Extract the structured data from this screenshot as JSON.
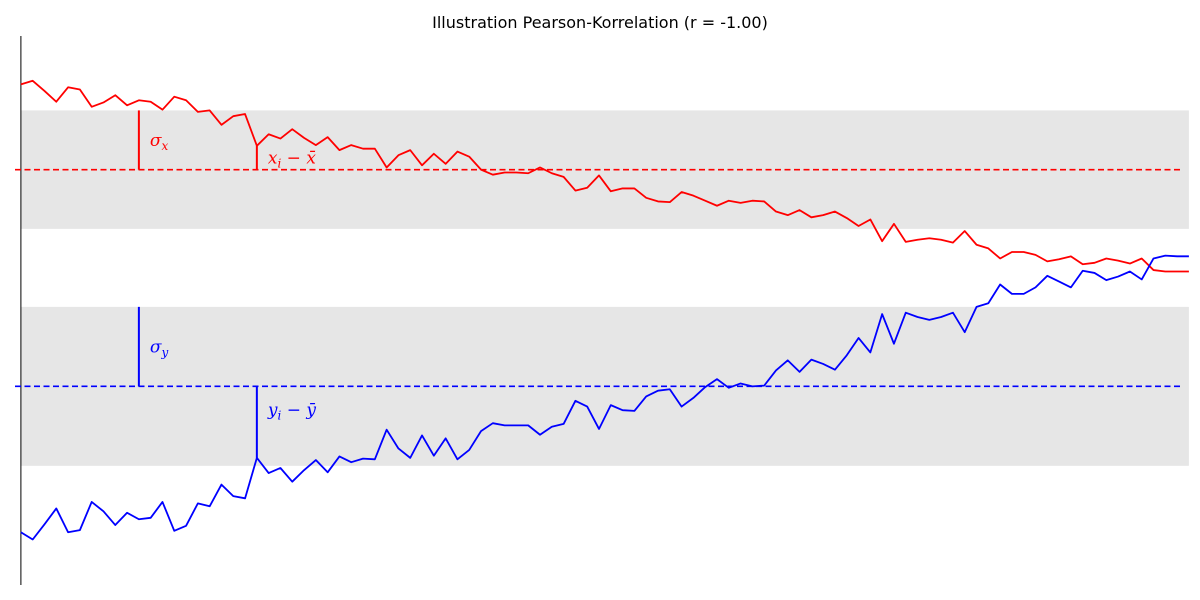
{
  "chart_data": {
    "type": "line",
    "title": "Illustration Pearson-Korrelation (r = -1.00)",
    "xlabel": "",
    "ylabel": "",
    "grid": false,
    "n_points": 100,
    "xlim": [
      -0.5,
      98.5
    ],
    "ylim": [
      -0.8,
      6.8
    ],
    "colors": {
      "x_series": "#ff0000",
      "y_series": "#0000ff",
      "band": "#e6e6e6",
      "axis": "#000000"
    },
    "series": [
      {
        "key": "x",
        "values": [
          6.13,
          6.18,
          6.04,
          5.89,
          6.09,
          6.06,
          5.82,
          5.88,
          5.98,
          5.84,
          5.91,
          5.89,
          5.78,
          5.96,
          5.91,
          5.75,
          5.77,
          5.57,
          5.69,
          5.72,
          5.28,
          5.44,
          5.38,
          5.51,
          5.39,
          5.29,
          5.4,
          5.22,
          5.29,
          5.24,
          5.24,
          4.98,
          5.15,
          5.22,
          5.01,
          5.17,
          5.03,
          5.2,
          5.13,
          4.95,
          4.88,
          4.91,
          4.91,
          4.9,
          4.98,
          4.9,
          4.85,
          4.66,
          4.7,
          4.87,
          4.65,
          4.69,
          4.69,
          4.56,
          4.51,
          4.5,
          4.64,
          4.59,
          4.52,
          4.45,
          4.52,
          4.49,
          4.52,
          4.51,
          4.37,
          4.32,
          4.39,
          4.29,
          4.32,
          4.37,
          4.28,
          4.17,
          4.26,
          3.96,
          4.2,
          3.95,
          3.98,
          4.0,
          3.98,
          3.94,
          4.1,
          3.91,
          3.86,
          3.72,
          3.81,
          3.81,
          3.77,
          3.68,
          3.71,
          3.75,
          3.64,
          3.66,
          3.72,
          3.69,
          3.65,
          3.72,
          3.56,
          3.54,
          3.54,
          3.54
        ]
      },
      {
        "key": "y",
        "values": [
          -0.07,
          -0.17,
          0.04,
          0.26,
          -0.07,
          -0.04,
          0.35,
          0.22,
          0.03,
          0.2,
          0.11,
          0.13,
          0.35,
          -0.05,
          0.02,
          0.33,
          0.29,
          0.59,
          0.43,
          0.4,
          0.96,
          0.75,
          0.82,
          0.63,
          0.79,
          0.93,
          0.76,
          0.98,
          0.9,
          0.95,
          0.94,
          1.35,
          1.09,
          0.96,
          1.27,
          0.99,
          1.23,
          0.94,
          1.07,
          1.33,
          1.44,
          1.41,
          1.41,
          1.41,
          1.28,
          1.39,
          1.43,
          1.75,
          1.67,
          1.36,
          1.69,
          1.62,
          1.61,
          1.81,
          1.89,
          1.91,
          1.67,
          1.79,
          1.94,
          2.05,
          1.93,
          1.99,
          1.95,
          1.96,
          2.17,
          2.31,
          2.15,
          2.32,
          2.26,
          2.18,
          2.38,
          2.62,
          2.42,
          2.95,
          2.54,
          2.97,
          2.91,
          2.87,
          2.91,
          2.97,
          2.7,
          3.05,
          3.1,
          3.36,
          3.23,
          3.23,
          3.32,
          3.48,
          3.4,
          3.32,
          3.55,
          3.52,
          3.42,
          3.47,
          3.54,
          3.43,
          3.72,
          3.76,
          3.75,
          3.75
        ]
      }
    ],
    "x_mean": 4.95,
    "x_std": 0.82,
    "y_mean": 1.95,
    "y_std": 1.1,
    "annotations": [
      {
        "id": "sigma_x",
        "text": "σ",
        "sub": "x",
        "color": "#ff0000"
      },
      {
        "id": "dev_x",
        "text": "x",
        "sub": "i",
        "rest": " − x̄",
        "color": "#ff0000"
      },
      {
        "id": "sigma_y",
        "text": "σ",
        "sub": "y",
        "color": "#0000ff"
      },
      {
        "id": "dev_y",
        "text": "y",
        "sub": "i",
        "rest": " − ȳ",
        "color": "#0000ff"
      }
    ]
  }
}
